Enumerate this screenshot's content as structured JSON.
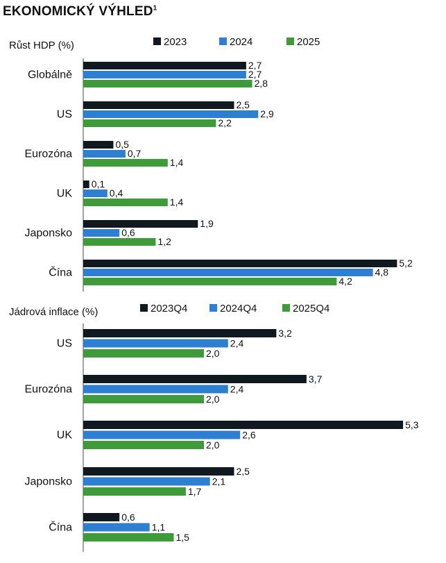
{
  "title": "EKONOMICKÝ VÝHLED",
  "title_footnote": "1",
  "colors": {
    "series1": "#101820",
    "series2": "#2e7fd2",
    "series3": "#3f9a3a",
    "axis": "#444444"
  },
  "chart_data": [
    {
      "type": "bar",
      "orientation": "horizontal",
      "title": "Růst HDP (%)",
      "categories": [
        "Globálně",
        "US",
        "Eurozóna",
        "UK",
        "Japonsko",
        "Čína"
      ],
      "series": [
        {
          "name": "2023",
          "values": [
            2.7,
            2.5,
            0.5,
            0.1,
            1.9,
            5.2
          ],
          "labels": [
            "2,7",
            "2,5",
            "0,5",
            "0,1",
            "1,9",
            "5,2"
          ]
        },
        {
          "name": "2024",
          "values": [
            2.7,
            2.9,
            0.7,
            0.4,
            0.6,
            4.8
          ],
          "labels": [
            "2,7",
            "2,9",
            "0,7",
            "0,4",
            "0,6",
            "4,8"
          ]
        },
        {
          "name": "2025",
          "values": [
            2.8,
            2.2,
            1.4,
            1.4,
            1.2,
            4.2
          ],
          "labels": [
            "2,8",
            "2,2",
            "1,4",
            "1,4",
            "1,2",
            "4,2"
          ]
        }
      ],
      "legend_position": "top",
      "xlim": [
        0,
        5.3
      ]
    },
    {
      "type": "bar",
      "orientation": "horizontal",
      "title": "Jádrová inflace (%)",
      "categories": [
        "US",
        "Eurozóna",
        "UK",
        "Japonsko",
        "Čína"
      ],
      "series": [
        {
          "name": "2023Q4",
          "values": [
            3.2,
            3.7,
            5.3,
            2.5,
            0.6
          ],
          "labels": [
            "3,2",
            "3,7",
            "5,3",
            "2,5",
            "0,6"
          ]
        },
        {
          "name": "2024Q4",
          "values": [
            2.4,
            2.4,
            2.6,
            2.1,
            1.1
          ],
          "labels": [
            "2,4",
            "2,4",
            "2,6",
            "2,1",
            "1,1"
          ]
        },
        {
          "name": "2025Q4",
          "values": [
            2.0,
            2.0,
            2.0,
            1.7,
            1.5
          ],
          "labels": [
            "2,0",
            "2,0",
            "2,0",
            "1,7",
            "1,5"
          ]
        }
      ],
      "legend_position": "top",
      "xlim": [
        0,
        5.3
      ]
    }
  ]
}
